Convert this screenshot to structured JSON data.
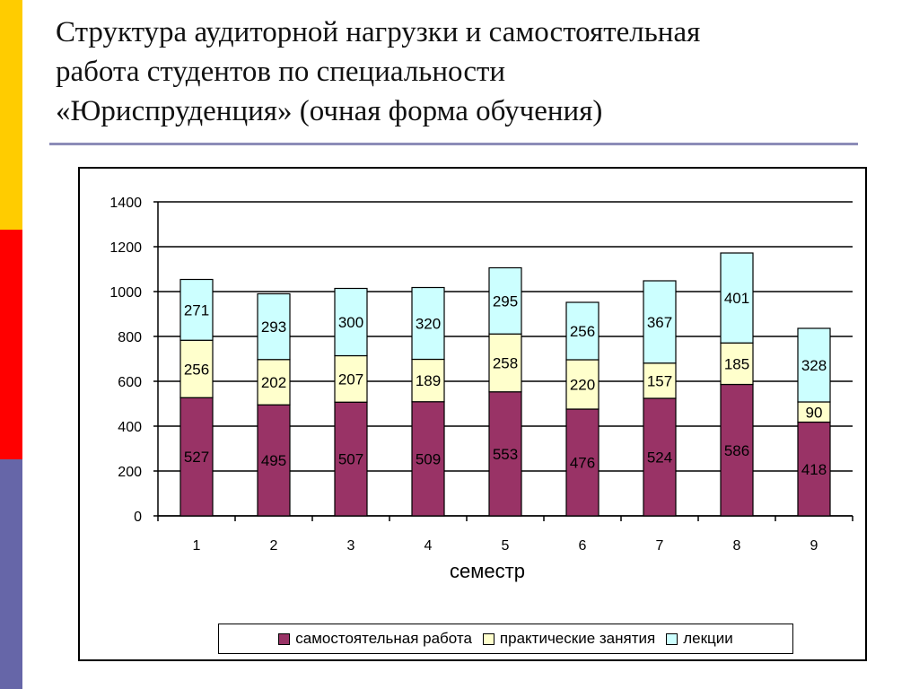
{
  "slide": {
    "title_lines": [
      "Структура аудиторной нагрузки и самостоятельная",
      "работа студентов по специальности",
      "«Юриспруденция» (очная форма обучения)"
    ],
    "accent_colors": {
      "stripe_top": "#ffcc00",
      "stripe_middle": "#ff0000",
      "stripe_bottom": "#6666a8",
      "rule": "#8c8cb8"
    }
  },
  "chart_data": {
    "type": "bar",
    "stacked": true,
    "categories": [
      "1",
      "2",
      "3",
      "4",
      "5",
      "6",
      "7",
      "8",
      "9"
    ],
    "series": [
      {
        "name": "самостоятельная работа",
        "color": "#993366",
        "values": [
          527,
          495,
          507,
          509,
          553,
          476,
          524,
          586,
          418
        ]
      },
      {
        "name": "практические занятия",
        "color": "#ffffcc",
        "values": [
          256,
          202,
          207,
          189,
          258,
          220,
          157,
          185,
          90
        ]
      },
      {
        "name": "лекции",
        "color": "#ccffff",
        "values": [
          271,
          293,
          300,
          320,
          295,
          256,
          367,
          401,
          328
        ]
      }
    ],
    "xlabel": "семестр",
    "ylabel": "",
    "ylim": [
      0,
      1400
    ],
    "yticks": [
      "0",
      "200",
      "400",
      "600",
      "800",
      "1000",
      "1200",
      "1400"
    ],
    "grid": true,
    "legend_position": "bottom"
  }
}
